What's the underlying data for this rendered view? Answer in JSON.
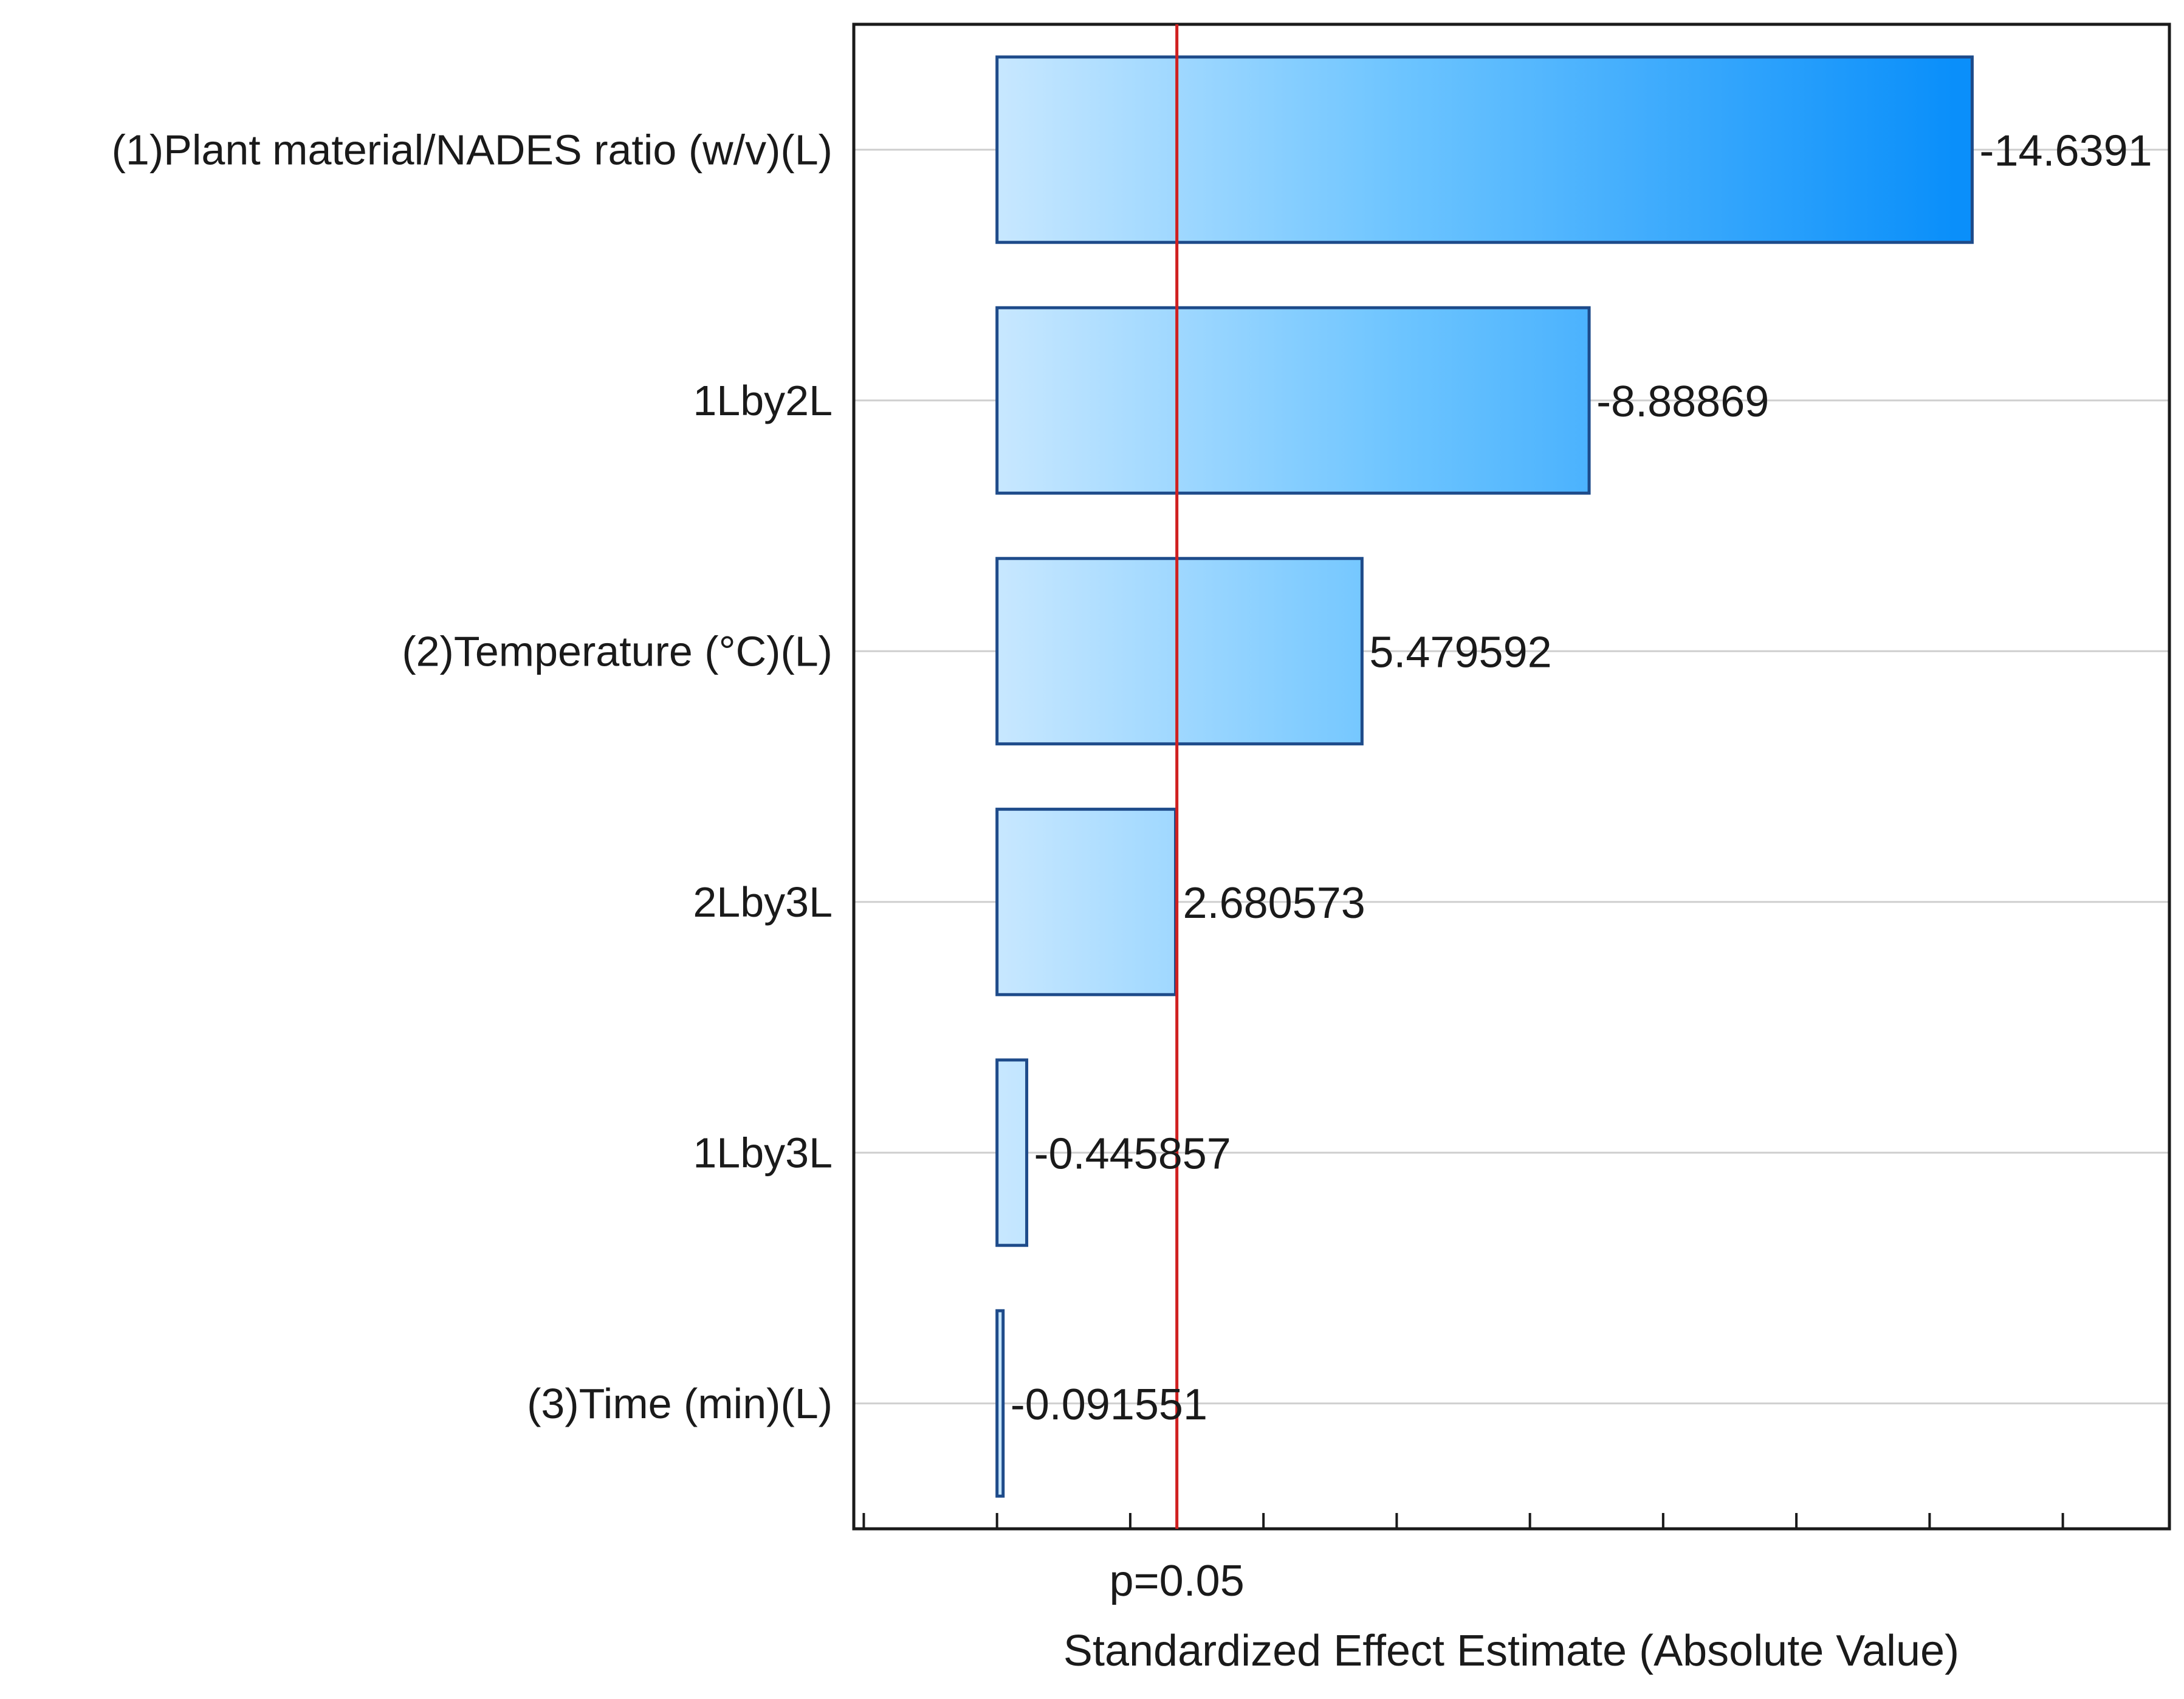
{
  "chart_data": {
    "type": "bar",
    "orientation": "horizontal",
    "title": "",
    "xlabel": "Standardized Effect Estimate (Absolute Value)",
    "ylabel": "",
    "categories": [
      "(1)Plant material/NADES ratio (w/v)(L)",
      "1Lby2L",
      "(2)Temperature (°C)(L)",
      "2Lby3L",
      "1Lby3L",
      "(3)Time (min)(L)"
    ],
    "values": [
      14.6391,
      8.88869,
      5.479592,
      2.680573,
      0.445857,
      0.091551
    ],
    "value_labels": [
      "-14.6391",
      "-8.88869",
      "5.479592",
      "2.680573",
      "-0.445857",
      "-0.091551"
    ],
    "reference_line": {
      "label": "p=0.05",
      "value": 2.7,
      "color": "#d02020"
    },
    "xlim": [
      -2.15,
      17.6
    ],
    "x_tick_step": 2,
    "grid": "horizontal lines at each bar",
    "bar_color": "#0a94ff",
    "bar_edge_color": "#1e4b8a"
  }
}
